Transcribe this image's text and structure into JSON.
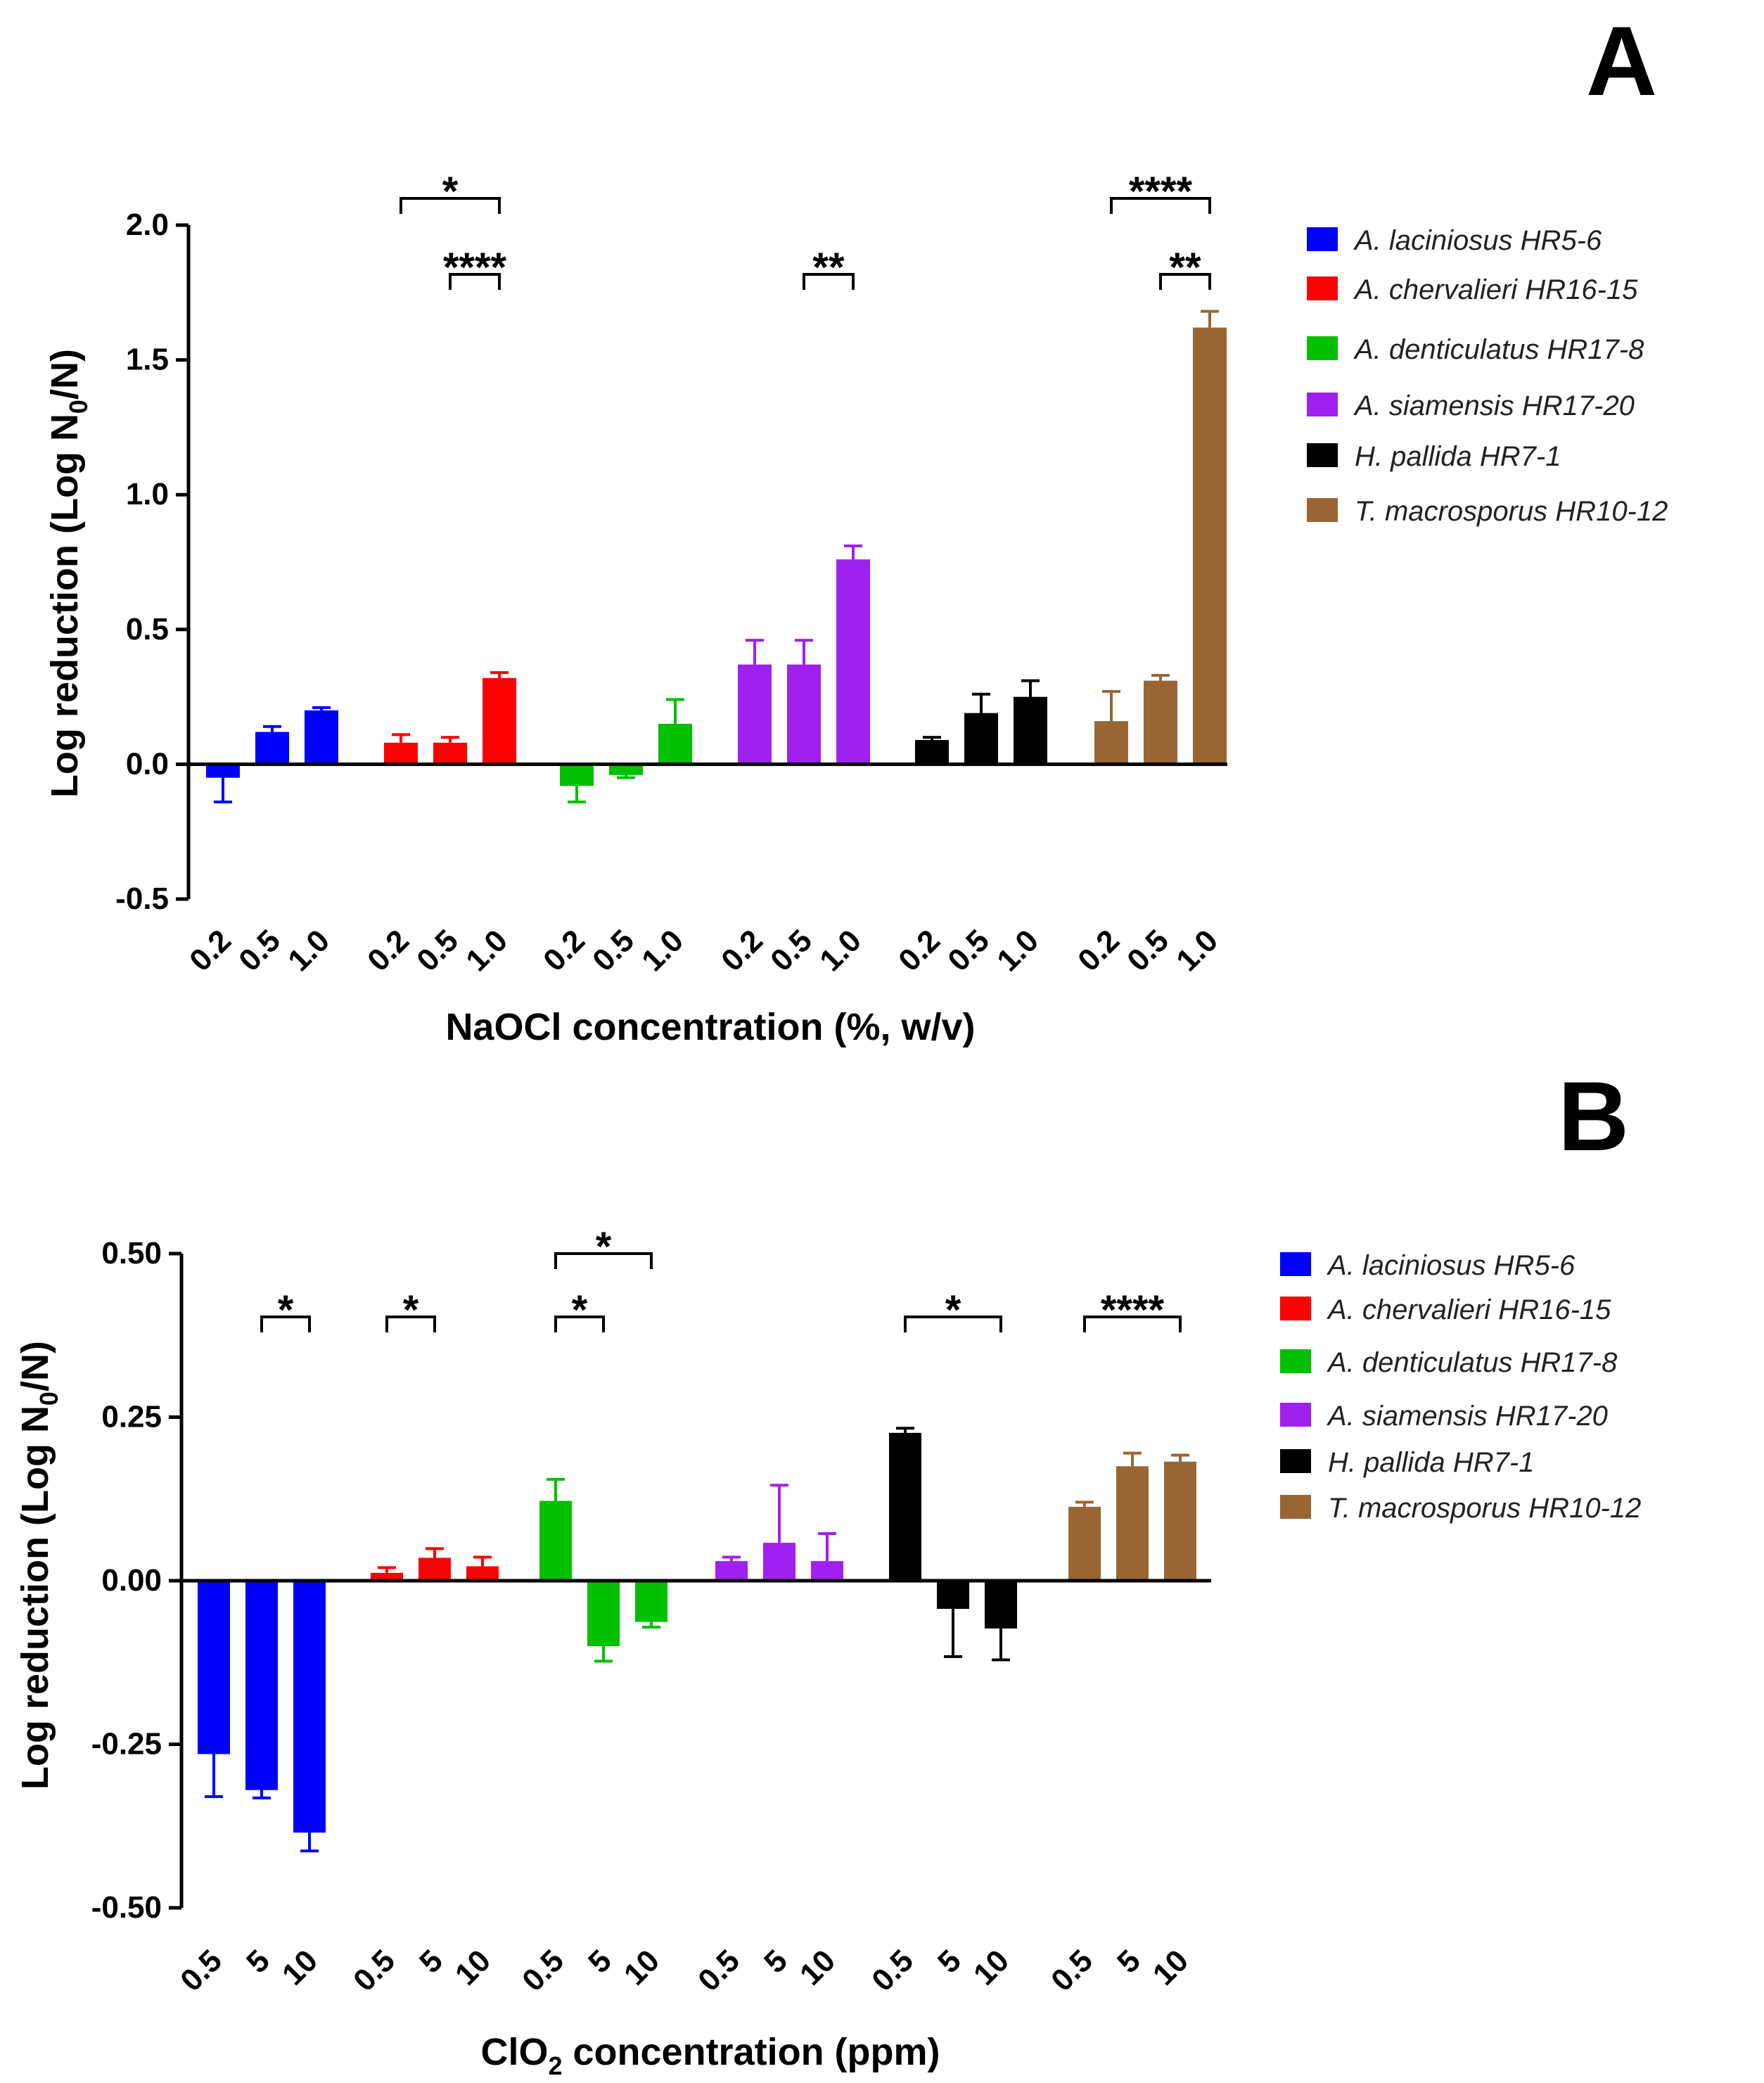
{
  "chart_data": [
    {
      "panel": "A",
      "type": "bar",
      "title": "",
      "xlabel": "NaOCl concentration (%, w/v)",
      "ylabel_main": "Log reduction (Log N",
      "ylabel_sub": "0",
      "ylabel_end": "/N)",
      "ylim": [
        -0.5,
        2.0
      ],
      "yticks": [
        -0.5,
        0.0,
        0.5,
        1.0,
        1.5,
        2.0
      ],
      "ytick_labels": [
        "-0.5",
        "0.0",
        "0.5",
        "1.0",
        "1.5",
        "2.0"
      ],
      "categories": [
        "0.2",
        "0.5",
        "1.0"
      ],
      "legend_position": "right",
      "series": [
        {
          "name": "A. laciniosus HR5-6",
          "color": "#0000ff",
          "values": [
            -0.05,
            0.12,
            0.2
          ],
          "errors": [
            0.09,
            0.02,
            0.01
          ]
        },
        {
          "name": "A. chervalieri HR16-15",
          "color": "#ff0000",
          "values": [
            0.08,
            0.08,
            0.32
          ],
          "errors": [
            0.03,
            0.02,
            0.02
          ]
        },
        {
          "name": "A. denticulatus HR17-8",
          "color": "#00c000",
          "values": [
            -0.08,
            -0.04,
            0.15
          ],
          "errors": [
            0.06,
            0.01,
            0.09
          ]
        },
        {
          "name": "A. siamensis HR17-20",
          "color": "#a020f0",
          "values": [
            0.37,
            0.37,
            0.76
          ],
          "errors": [
            0.09,
            0.09,
            0.05
          ]
        },
        {
          "name": "H. pallida HR7-1",
          "color": "#000000",
          "values": [
            0.09,
            0.19,
            0.25
          ],
          "errors": [
            0.01,
            0.07,
            0.06
          ]
        },
        {
          "name": "T.  macrosporus HR10-12",
          "color": "#996633",
          "values": [
            0.16,
            0.31,
            1.62
          ],
          "errors": [
            0.11,
            0.02,
            0.06
          ]
        }
      ],
      "significance": [
        {
          "group": 1,
          "from": 0,
          "to": 2,
          "label": "*",
          "level": 0
        },
        {
          "group": 1,
          "from": 1,
          "to": 2,
          "label": "****",
          "level": 1
        },
        {
          "group": 3,
          "from": 1,
          "to": 2,
          "label": "**",
          "level": 1
        },
        {
          "group": 5,
          "from": 0,
          "to": 2,
          "label": "****",
          "level": 0
        },
        {
          "group": 5,
          "from": 1,
          "to": 2,
          "label": "**",
          "level": 1
        }
      ]
    },
    {
      "panel": "B",
      "type": "bar",
      "title": "",
      "xlabel_main": "ClO",
      "xlabel_sub": "2",
      "xlabel_end": " concentration (ppm)",
      "ylabel_main": "Log reduction (Log N",
      "ylabel_sub": "0",
      "ylabel_end": "/N)",
      "ylim": [
        -0.5,
        0.5
      ],
      "yticks": [
        -0.5,
        -0.25,
        0.0,
        0.25,
        0.5
      ],
      "ytick_labels": [
        "-0.50",
        "-0.25",
        "0.00",
        "0.25",
        "0.50"
      ],
      "categories": [
        "0.5",
        "5",
        "10"
      ],
      "legend_position": "right",
      "series": [
        {
          "name": "A. laciniosus HR5-6",
          "color": "#0000ff",
          "values": [
            -0.265,
            -0.32,
            -0.385
          ],
          "errors": [
            0.065,
            0.012,
            0.028
          ]
        },
        {
          "name": "A. chervalieri HR16-15",
          "color": "#ff0000",
          "values": [
            0.012,
            0.035,
            0.022
          ],
          "errors": [
            0.008,
            0.014,
            0.014
          ]
        },
        {
          "name": "A. denticulatus HR17-8",
          "color": "#00c000",
          "values": [
            0.122,
            -0.1,
            -0.063
          ],
          "errors": [
            0.033,
            0.023,
            0.008
          ]
        },
        {
          "name": "A. siamensis HR17-20",
          "color": "#a020f0",
          "values": [
            0.03,
            0.058,
            0.03
          ],
          "errors": [
            0.006,
            0.088,
            0.042
          ]
        },
        {
          "name": "H. pallida HR7-1",
          "color": "#000000",
          "values": [
            0.226,
            -0.043,
            -0.073
          ],
          "errors": [
            0.007,
            0.073,
            0.048
          ]
        },
        {
          "name": "T. macrosporus HR10-12",
          "color": "#996633",
          "values": [
            0.113,
            0.175,
            0.182
          ],
          "errors": [
            0.007,
            0.02,
            0.01
          ]
        }
      ],
      "significance": [
        {
          "group": 0,
          "from": 1,
          "to": 2,
          "label": "*",
          "level": 0
        },
        {
          "group": 1,
          "from": 0,
          "to": 1,
          "label": "*",
          "level": 0
        },
        {
          "group": 2,
          "from": 0,
          "to": 2,
          "label": "*",
          "level": 1
        },
        {
          "group": 2,
          "from": 0,
          "to": 1,
          "label": "*",
          "level": 0
        },
        {
          "group": 4,
          "from": 0,
          "to": 2,
          "label": "*",
          "level": 0
        },
        {
          "group": 5,
          "from": 0,
          "to": 2,
          "label": "****",
          "level": 0
        }
      ]
    }
  ]
}
